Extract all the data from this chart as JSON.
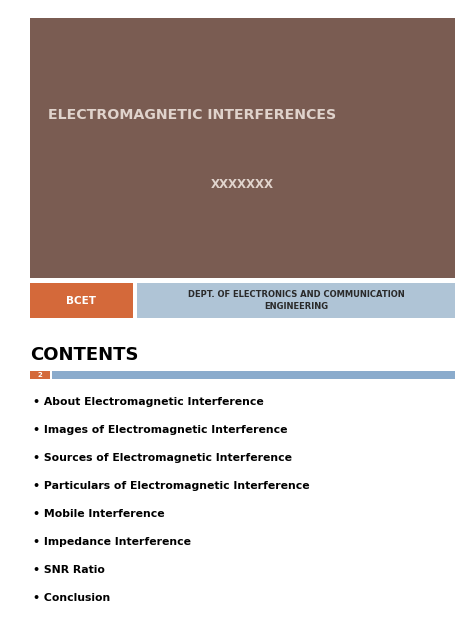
{
  "bg_color": "#ffffff",
  "slide_bg": "#7a5c52",
  "title_text": "ELECTROMAGNETIC INTERFERENCES",
  "title_color": "#e0d3cc",
  "subtitle_text": "XXXXXXX",
  "subtitle_color": "#e0d3cc",
  "bcet_bg": "#d4693a",
  "bcet_text": "BCET",
  "bcet_text_color": "#ffffff",
  "dept_bg": "#afc4d6",
  "dept_text": "DEPT. OF ELECTRONICS AND COMMUNICATION\nENGINEERING",
  "dept_text_color": "#2a2a2a",
  "contents_title": "CONTENTS",
  "contents_title_color": "#000000",
  "divider_left_color": "#d4693a",
  "divider_right_color": "#8aabcc",
  "divider_num": "2",
  "bullet_items": [
    "About Electromagnetic Interference",
    "Images of Electromagnetic Interference",
    "Sources of Electromagnetic Interference",
    "Particulars of Electromagnetic Interference",
    "Mobile Interference",
    "Impedance Interference",
    "SNR Ratio",
    "Conclusion"
  ],
  "bullet_color": "#000000"
}
